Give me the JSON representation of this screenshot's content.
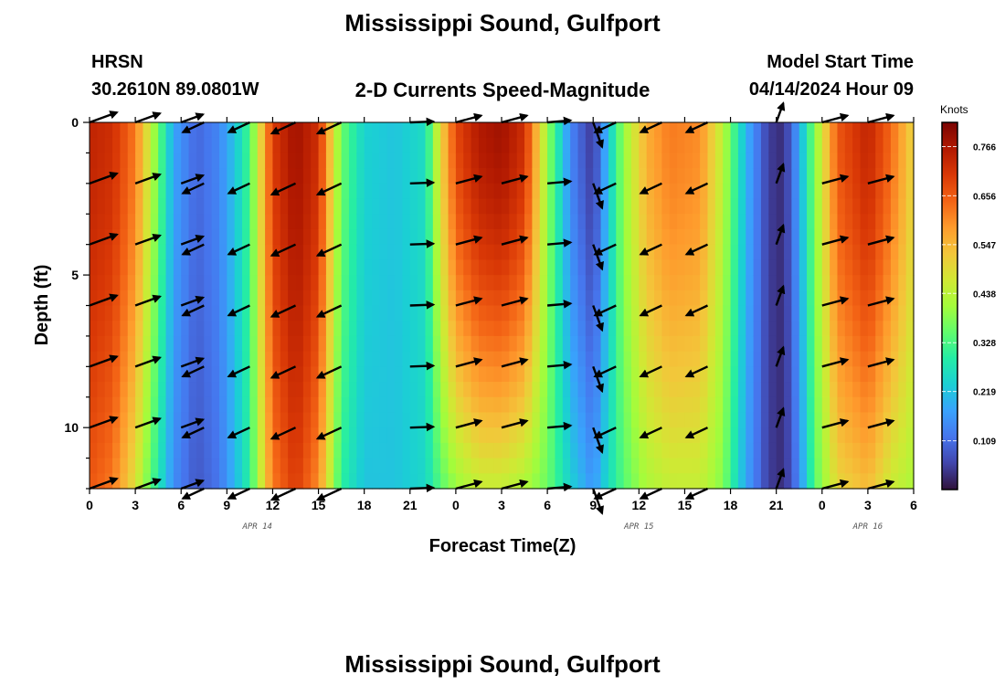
{
  "page": {
    "title": "Mississippi Sound, Gulfport",
    "footer_title": "Mississippi Sound, Gulfport",
    "station_code": "HRSN",
    "station_coords": "30.2610N  89.0801W",
    "product": "2-D Currents Speed-Magnitude",
    "model_start_label": "Model Start Time",
    "model_start_value": "04/14/2024 Hour 09"
  },
  "chart_data": {
    "type": "heatmap",
    "title": "2-D Currents Speed-Magnitude",
    "xlabel": "Forecast Time(Z)",
    "ylabel": "Depth (ft)",
    "x_hours": [
      0,
      54
    ],
    "y_range": [
      0,
      12
    ],
    "x_tick_labels": [
      "0",
      "3",
      "6",
      "9",
      "12",
      "15",
      "18",
      "21",
      "0",
      "3",
      "6",
      "9",
      "12",
      "15",
      "18",
      "21",
      "0",
      "3",
      "6"
    ],
    "y_ticks": [
      0,
      5,
      10
    ],
    "y_tick_labels": [
      "0",
      "5",
      "10"
    ],
    "date_labels": [
      {
        "label": "APR 14",
        "hour": 11
      },
      {
        "label": "APR 15",
        "hour": 36
      },
      {
        "label": "APR 16",
        "hour": 51
      }
    ],
    "colorbar": {
      "unit": "Knots",
      "min": 0.0,
      "max": 0.82,
      "tick_values": [
        0.766,
        0.656,
        0.547,
        0.438,
        0.328,
        0.219,
        0.109
      ],
      "tick_labels": [
        "0.766",
        "0.656",
        "0.547",
        "0.438",
        "0.328",
        "0.219",
        "0.109"
      ],
      "colors": [
        "#30123b",
        "#4145ab",
        "#4675ed",
        "#39a2fc",
        "#1bcfd4",
        "#24eca6",
        "#61fc6c",
        "#a4fc3b",
        "#d1e834",
        "#f3c63a",
        "#fe9b2d",
        "#f36315",
        "#d93806",
        "#b11901",
        "#7a0403"
      ]
    },
    "speed_profile": [
      {
        "hour": 0,
        "surface": 0.74,
        "bottom": 0.66
      },
      {
        "hour": 1.5,
        "surface": 0.72,
        "bottom": 0.62
      },
      {
        "hour": 3,
        "surface": 0.62,
        "bottom": 0.48
      },
      {
        "hour": 4.5,
        "surface": 0.36,
        "bottom": 0.28
      },
      {
        "hour": 5.5,
        "surface": 0.18,
        "bottom": 0.15
      },
      {
        "hour": 7,
        "surface": 0.1,
        "bottom": 0.08
      },
      {
        "hour": 8.5,
        "surface": 0.14,
        "bottom": 0.12
      },
      {
        "hour": 9.5,
        "surface": 0.22,
        "bottom": 0.2
      },
      {
        "hour": 10.5,
        "surface": 0.33,
        "bottom": 0.3
      },
      {
        "hour": 12,
        "surface": 0.7,
        "bottom": 0.62
      },
      {
        "hour": 13.5,
        "surface": 0.78,
        "bottom": 0.7
      },
      {
        "hour": 15,
        "surface": 0.72,
        "bottom": 0.6
      },
      {
        "hour": 16.5,
        "surface": 0.36,
        "bottom": 0.3
      },
      {
        "hour": 18,
        "surface": 0.24,
        "bottom": 0.22
      },
      {
        "hour": 20,
        "surface": 0.22,
        "bottom": 0.22
      },
      {
        "hour": 22,
        "surface": 0.26,
        "bottom": 0.25
      },
      {
        "hour": 23,
        "surface": 0.5,
        "bottom": 0.34
      },
      {
        "hour": 24,
        "surface": 0.68,
        "bottom": 0.4
      },
      {
        "hour": 25.5,
        "surface": 0.76,
        "bottom": 0.45
      },
      {
        "hour": 27,
        "surface": 0.78,
        "bottom": 0.45
      },
      {
        "hour": 28.5,
        "surface": 0.72,
        "bottom": 0.42
      },
      {
        "hour": 30,
        "surface": 0.4,
        "bottom": 0.36
      },
      {
        "hour": 31.5,
        "surface": 0.14,
        "bottom": 0.24
      },
      {
        "hour": 33,
        "surface": 0.04,
        "bottom": 0.16
      },
      {
        "hour": 34,
        "surface": 0.22,
        "bottom": 0.26
      },
      {
        "hour": 35,
        "surface": 0.4,
        "bottom": 0.34
      },
      {
        "hour": 36.5,
        "surface": 0.56,
        "bottom": 0.42
      },
      {
        "hour": 38,
        "surface": 0.62,
        "bottom": 0.45
      },
      {
        "hour": 40,
        "surface": 0.6,
        "bottom": 0.45
      },
      {
        "hour": 41.5,
        "surface": 0.44,
        "bottom": 0.38
      },
      {
        "hour": 43,
        "surface": 0.2,
        "bottom": 0.18
      },
      {
        "hour": 44.5,
        "surface": 0.05,
        "bottom": 0.05
      },
      {
        "hour": 45.5,
        "surface": 0.03,
        "bottom": 0.03
      },
      {
        "hour": 46.5,
        "surface": 0.18,
        "bottom": 0.14
      },
      {
        "hour": 47.5,
        "surface": 0.38,
        "bottom": 0.34
      },
      {
        "hour": 49,
        "surface": 0.66,
        "bottom": 0.5
      },
      {
        "hour": 51,
        "surface": 0.74,
        "bottom": 0.54
      },
      {
        "hour": 52.5,
        "surface": 0.64,
        "bottom": 0.46
      },
      {
        "hour": 54,
        "surface": 0.5,
        "bottom": 0.42
      }
    ],
    "arrow_depths": [
      0,
      2,
      4,
      6,
      8,
      10,
      12
    ],
    "vectors": [
      {
        "hour": 0,
        "dir": 70,
        "len": 1.0
      },
      {
        "hour": 3,
        "dir": 70,
        "len": 0.9
      },
      {
        "hour": 6,
        "dir": 70,
        "len": 0.8
      },
      {
        "hour": 7.5,
        "dir": 245,
        "len": 0.8
      },
      {
        "hour": 10.5,
        "dir": 245,
        "len": 0.8
      },
      {
        "hour": 13.5,
        "dir": 245,
        "len": 0.9
      },
      {
        "hour": 16.5,
        "dir": 245,
        "len": 0.9
      },
      {
        "hour": 21,
        "dir": 88,
        "len": 0.8
      },
      {
        "hour": 24,
        "dir": 75,
        "len": 0.9
      },
      {
        "hour": 27,
        "dir": 75,
        "len": 0.9
      },
      {
        "hour": 30,
        "dir": 85,
        "len": 0.8
      },
      {
        "hour": 33,
        "dir": 160,
        "len": 0.9
      },
      {
        "hour": 34.5,
        "dir": 245,
        "len": 0.8
      },
      {
        "hour": 37.5,
        "dir": 245,
        "len": 0.8
      },
      {
        "hour": 40.5,
        "dir": 245,
        "len": 0.8
      },
      {
        "hour": 45,
        "dir": 20,
        "len": 0.7
      },
      {
        "hour": 48,
        "dir": 75,
        "len": 0.9
      },
      {
        "hour": 51,
        "dir": 75,
        "len": 0.9
      }
    ]
  }
}
